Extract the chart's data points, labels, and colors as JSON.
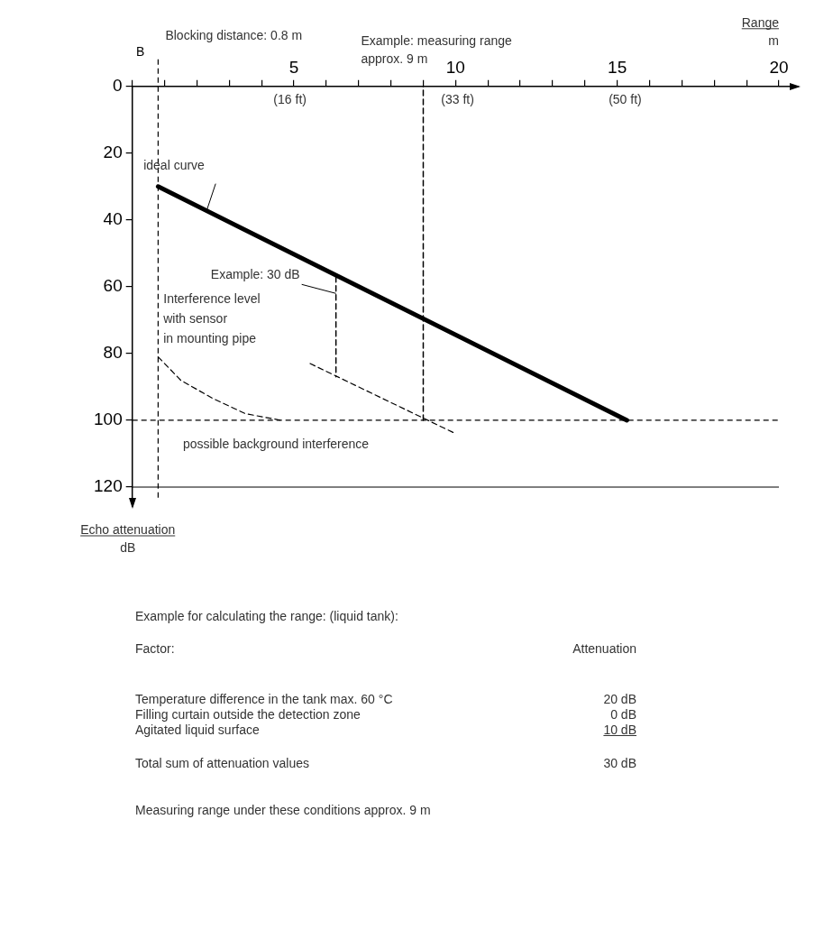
{
  "chart_data": {
    "type": "line",
    "xlabel": "Range\nm",
    "ylabel": "Echo attenuation\ndB",
    "xlim": [
      0,
      20
    ],
    "xticks": [
      {
        "value": 0,
        "label": null
      },
      {
        "value": 1,
        "label": null
      },
      {
        "value": 2,
        "label": null
      },
      {
        "value": 3,
        "label": null
      },
      {
        "value": 4,
        "label": null
      },
      5,
      {
        "value": 6,
        "label": null
      },
      {
        "value": 7,
        "label": null
      },
      {
        "value": 8,
        "label": null
      },
      {
        "value": 9,
        "label": null
      },
      10,
      {
        "value": 11,
        "label": null
      },
      {
        "value": 12,
        "label": null
      },
      {
        "value": 13,
        "label": null
      },
      {
        "value": 14,
        "label": null
      },
      15,
      {
        "value": 16,
        "label": null
      },
      {
        "value": 17,
        "label": null
      },
      {
        "value": 18,
        "label": null
      },
      {
        "value": 19,
        "label": null
      },
      20
    ],
    "x2lim": [
      0,
      65.6
    ],
    "x2ticks": [
      {
        "value": 16,
        "label": "(16 ft)"
      },
      {
        "value": 33,
        "label": "(33 ft)"
      },
      {
        "value": 50,
        "label": "(50 ft)"
      }
    ],
    "ylim": [
      120,
      0
    ],
    "yticks": [
      0,
      20,
      40,
      60,
      80,
      100,
      120
    ],
    "grid": false,
    "legend": false,
    "marker": "none",
    "series": [
      {
        "name": "ideal curve",
        "type": "line",
        "color": "#000000",
        "line_style": "solid",
        "x": [
          0.8,
          15.3
        ],
        "values": [
          30,
          100
        ]
      },
      {
        "name": "Interference level\nwith sensor\nin mounting pipe",
        "type": "line",
        "color": "#000000",
        "line_style": "dashed",
        "x": [
          0.8,
          1.5,
          2.5,
          3.5,
          4.6
        ],
        "values": [
          81,
          88,
          93.5,
          98,
          100
        ]
      },
      {
        "type": "line",
        "color": "#000000",
        "line_style": "dashed",
        "x": [
          5.5,
          10
        ],
        "values": [
          83,
          104
        ]
      },
      {
        "type": "line",
        "color": "#000000",
        "line_style": "dashed",
        "x": [
          9,
          9
        ],
        "values": [
          100,
          0
        ]
      },
      {
        "type": "line",
        "color": "#000000",
        "line_style": "dashed",
        "x": [
          6.3,
          6.3
        ],
        "values": [
          57,
          87
        ]
      }
    ],
    "ref_lines": [
      {
        "axis": "x",
        "value": 0.8,
        "label": "Blocking distance: 0.8 m",
        "color": "#000000",
        "line_style": "dashed"
      },
      {
        "axis": "y",
        "value": 100,
        "label": "possible background interference",
        "color": "#000000",
        "line_style": "dashed"
      },
      {
        "axis": "y",
        "value": 120,
        "color": "#000000",
        "line_style": "solid"
      }
    ],
    "annotations": [
      "B",
      {
        "text": "Example: 30 dB",
        "x": 6.3,
        "y": 62
      },
      {
        "text": "Example: measuring range\napprox. 9 m",
        "x": 9,
        "y": 0
      },
      "Example for calculating the range: (liquid tank):",
      "Factor:",
      "Attenuation",
      "Temperature difference in the tank max. 60 °C",
      "20 dB",
      "Filling curtain outside the detection zone",
      "0 dB",
      "Agitated liquid surface",
      "10 dB",
      "Total sum of attenuation values",
      "30 dB",
      "Measuring range under these conditions approx. 9 m"
    ]
  }
}
